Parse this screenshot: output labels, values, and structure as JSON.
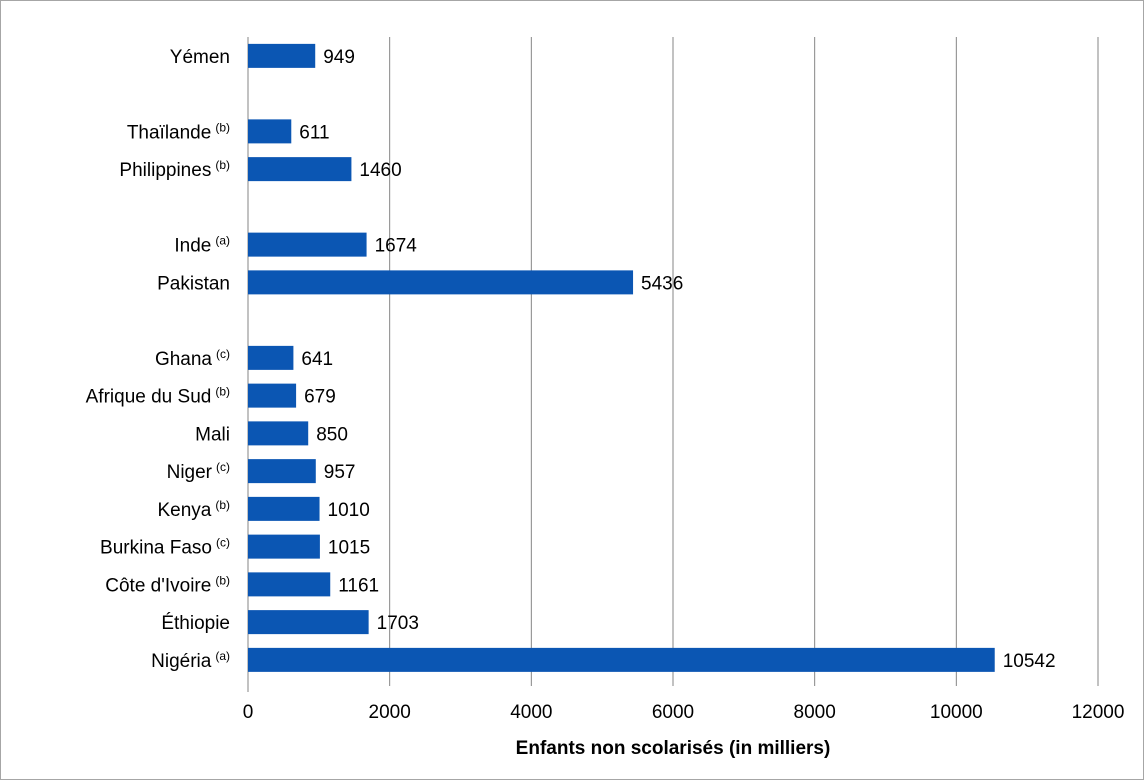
{
  "chart_data": {
    "type": "bar",
    "orientation": "horizontal",
    "categories": [
      {
        "name": "Yémen",
        "note": ""
      },
      {
        "name": "Thaïlande",
        "note": "(b)"
      },
      {
        "name": "Philippines",
        "note": "(b)"
      },
      {
        "name": "Inde",
        "note": "(a)"
      },
      {
        "name": "Pakistan",
        "note": ""
      },
      {
        "name": "Ghana",
        "note": "(c)"
      },
      {
        "name": "Afrique du Sud",
        "note": "(b)"
      },
      {
        "name": "Mali",
        "note": ""
      },
      {
        "name": "Niger",
        "note": "(c)"
      },
      {
        "name": "Kenya",
        "note": "(b)"
      },
      {
        "name": "Burkina Faso",
        "note": "(c)"
      },
      {
        "name": "Côte d'Ivoire",
        "note": "(b)"
      },
      {
        "name": "Éthiopie",
        "note": ""
      },
      {
        "name": "Nigéria",
        "note": "(a)"
      }
    ],
    "values": [
      949,
      611,
      1460,
      1674,
      5436,
      641,
      679,
      850,
      957,
      1010,
      1015,
      1161,
      1703,
      10542
    ],
    "group_sizes": [
      1,
      2,
      2,
      9
    ],
    "xlabel": "Enfants non scolarisés (in milliers)",
    "xlim": [
      0,
      12000
    ],
    "xticks": [
      "0",
      "2000",
      "4000",
      "6000",
      "8000",
      "10000",
      "12000"
    ],
    "grid": true,
    "bar_color": "#0b56b3",
    "grid_color": "#868686"
  }
}
